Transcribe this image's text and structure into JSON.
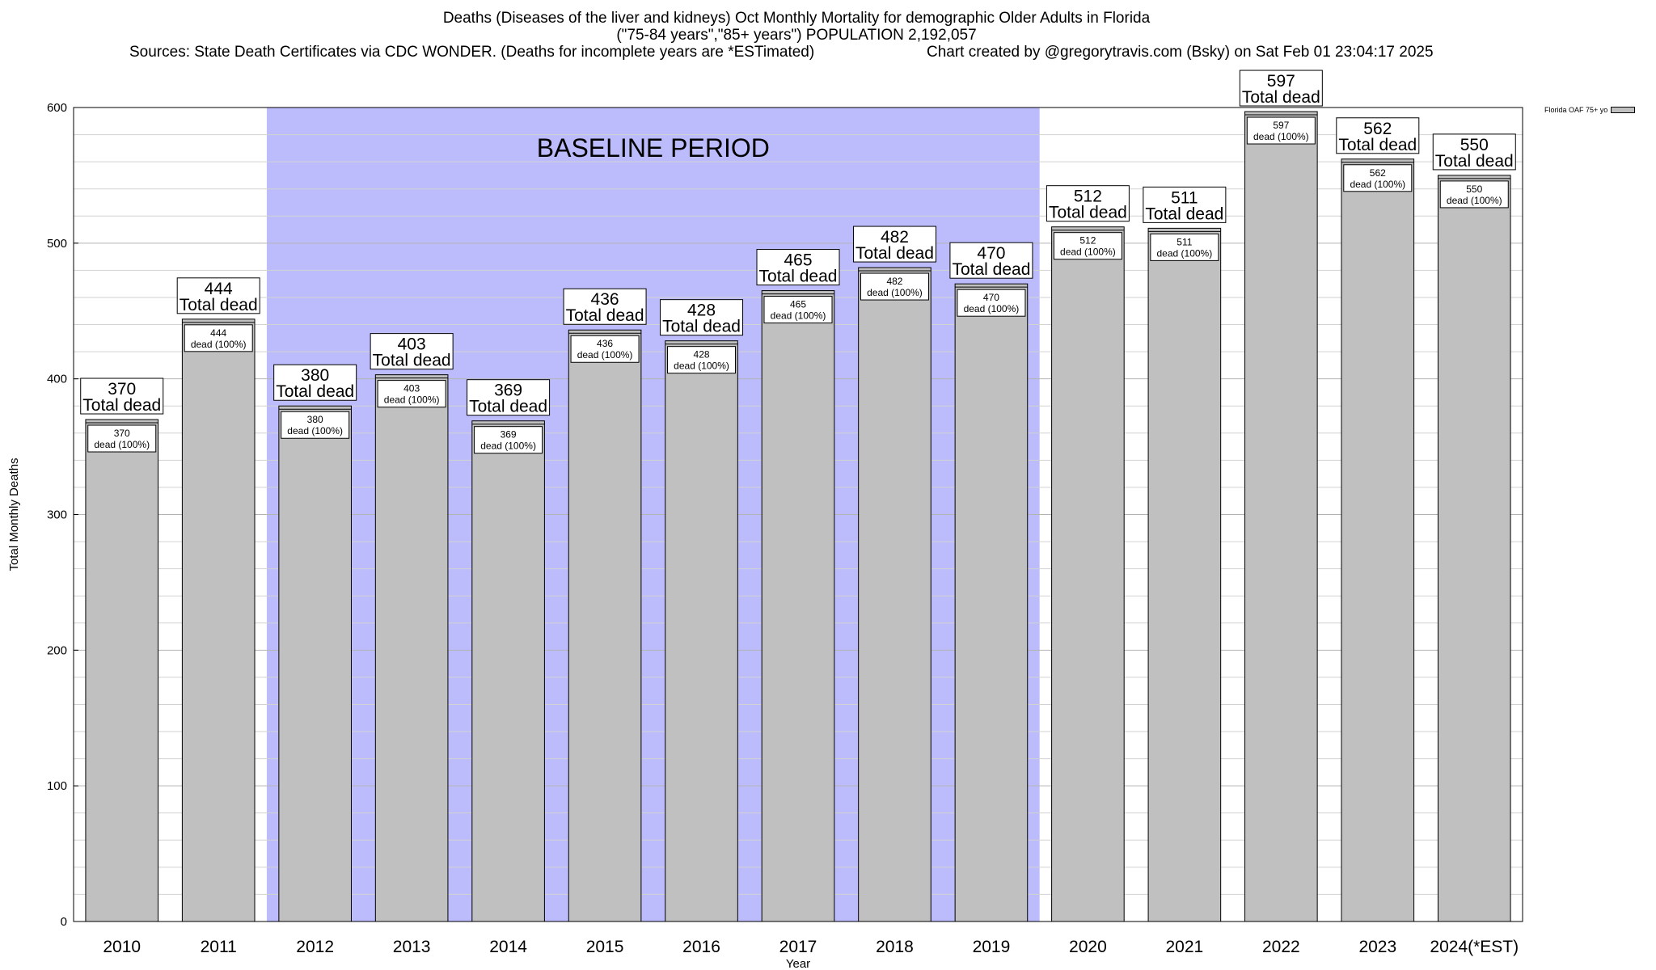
{
  "chart_data": {
    "type": "bar",
    "title_lines": [
      "Deaths (Diseases of the liver and kidneys) Oct Monthly Mortality for demographic Older Adults in Florida",
      "(\"75-84 years\",\"85+ years\") POPULATION 2,192,057"
    ],
    "sources": "Sources: State Death Certificates via CDC WONDER. (Deaths for incomplete years are *ESTimated)",
    "credit": "Chart created by @gregorytravis.com (Bsky) on Sat Feb 01 23:04:17 2025",
    "xlabel": "Year",
    "ylabel": "Total Monthly Deaths",
    "ylim": [
      0,
      600
    ],
    "yticks": [
      0,
      100,
      200,
      300,
      400,
      500,
      600
    ],
    "minor_grid_step": 20,
    "grid": true,
    "categories": [
      "2010",
      "2011",
      "2012",
      "2013",
      "2014",
      "2015",
      "2016",
      "2017",
      "2018",
      "2019",
      "2020",
      "2021",
      "2022",
      "2023",
      "2024(*EST)"
    ],
    "series": [
      {
        "name": "Florida OAF 75+ yo",
        "values": [
          370,
          444,
          380,
          403,
          369,
          436,
          428,
          465,
          482,
          470,
          512,
          511,
          597,
          562,
          550
        ],
        "color": "#c0c0c0"
      }
    ],
    "top_label_text": "Total dead",
    "inner_label_text": "dead (100%)",
    "baseline_period": {
      "label": "BASELINE PERIOD",
      "start": "2012",
      "end": "2019",
      "color": "#bcbcfc"
    },
    "legend_position": "top-right"
  }
}
